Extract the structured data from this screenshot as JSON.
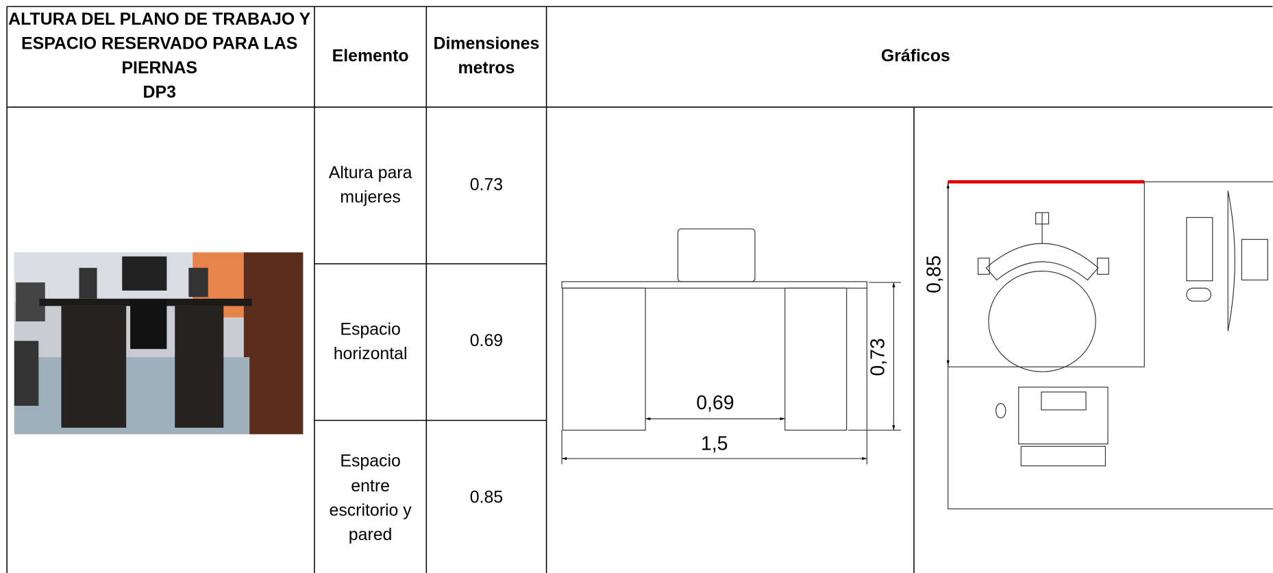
{
  "header": {
    "title": [
      "ALTURA DEL PLANO DE TRABAJO Y",
      "ESPACIO RESERVADO PARA LAS",
      "PIERNAS",
      "DP3"
    ],
    "element": "Elemento",
    "dimensions": [
      "Dimensiones",
      "metros"
    ],
    "graphics": "Gráficos"
  },
  "rows": [
    {
      "element": [
        "Altura para",
        "mujeres"
      ],
      "dimension": "0.73"
    },
    {
      "element": [
        "Espacio",
        "horizontal"
      ],
      "dimension": "0.69"
    },
    {
      "element": [
        "Espacio",
        "entre",
        "escritorio y",
        "pared"
      ],
      "dimension": "0.85"
    }
  ],
  "drawings": {
    "front_view": {
      "labels": [
        "0,69",
        "0,73",
        "1,5"
      ]
    },
    "top_view": {
      "labels": [
        "0,85"
      ]
    }
  }
}
